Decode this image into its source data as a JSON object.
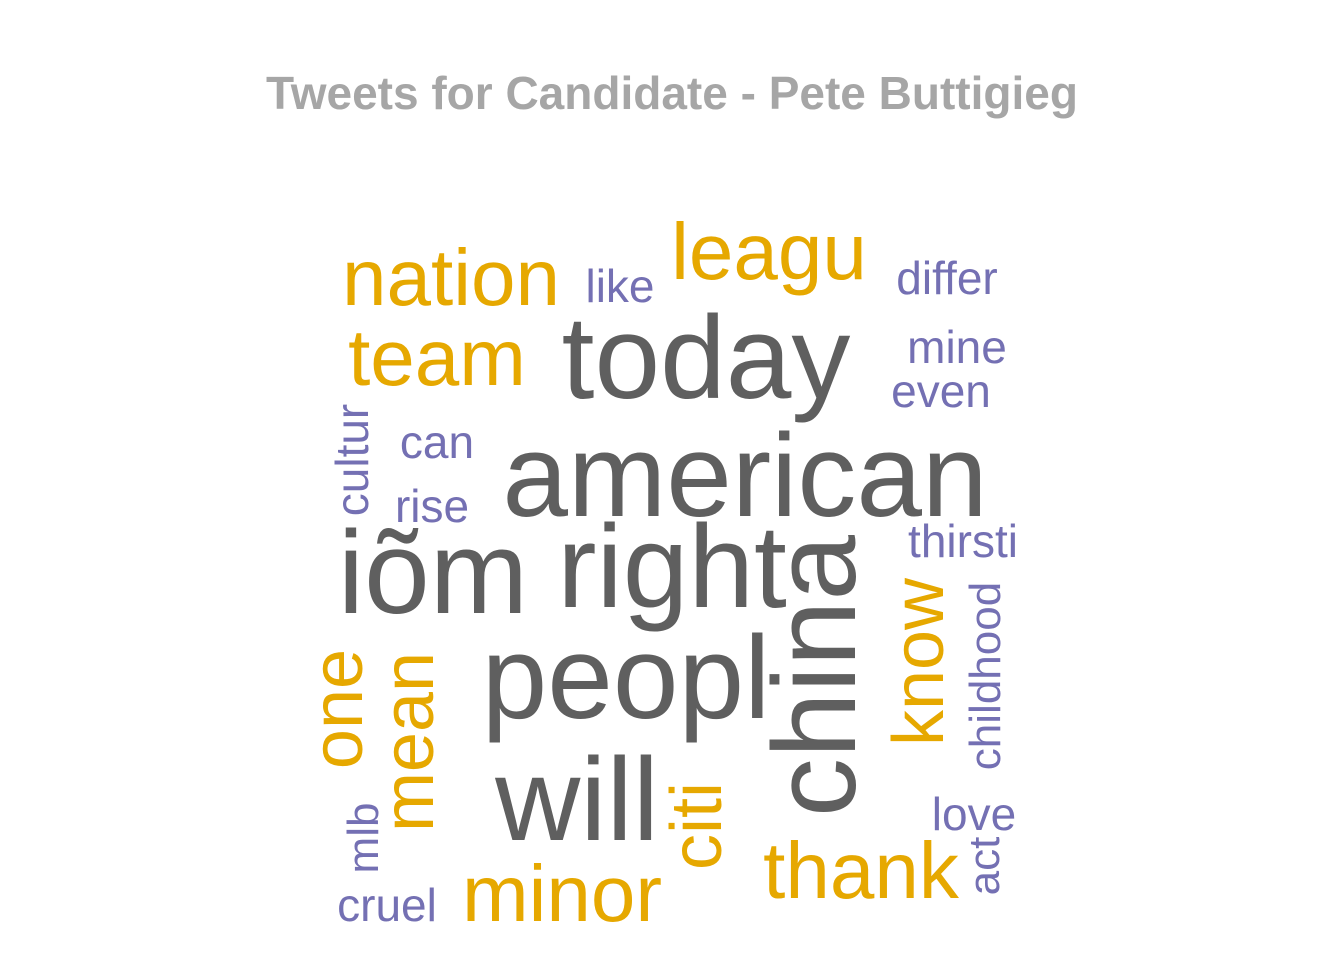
{
  "title": "Tweets for Candidate - Pete Buttigieg",
  "chart_data": {
    "type": "wordcloud",
    "title": "Tweets for Candidate - Pete Buttigieg",
    "palette": {
      "high": "#5f5f5f",
      "mid": "#e6a800",
      "low": "#7470b3"
    },
    "words": [
      {
        "text": "american",
        "group": "high"
      },
      {
        "text": "today",
        "group": "high"
      },
      {
        "text": "right",
        "group": "high"
      },
      {
        "text": "peopl",
        "group": "high"
      },
      {
        "text": "china",
        "group": "high"
      },
      {
        "text": "iõm",
        "group": "high"
      },
      {
        "text": "will",
        "group": "high"
      },
      {
        "text": "nation",
        "group": "mid"
      },
      {
        "text": "leagu",
        "group": "mid"
      },
      {
        "text": "team",
        "group": "mid"
      },
      {
        "text": "thank",
        "group": "mid"
      },
      {
        "text": "minor",
        "group": "mid"
      },
      {
        "text": "know",
        "group": "mid"
      },
      {
        "text": "mean",
        "group": "mid"
      },
      {
        "text": "one",
        "group": "mid"
      },
      {
        "text": "citi",
        "group": "mid"
      },
      {
        "text": "like",
        "group": "low"
      },
      {
        "text": "differ",
        "group": "low"
      },
      {
        "text": "mine",
        "group": "low"
      },
      {
        "text": "even",
        "group": "low"
      },
      {
        "text": "can",
        "group": "low"
      },
      {
        "text": "rise",
        "group": "low"
      },
      {
        "text": "cultur",
        "group": "low"
      },
      {
        "text": "thirsti",
        "group": "low"
      },
      {
        "text": "childhood",
        "group": "low"
      },
      {
        "text": "love",
        "group": "low"
      },
      {
        "text": "act",
        "group": "low"
      },
      {
        "text": "mlb",
        "group": "low"
      },
      {
        "text": "cruel",
        "group": "low"
      }
    ]
  }
}
